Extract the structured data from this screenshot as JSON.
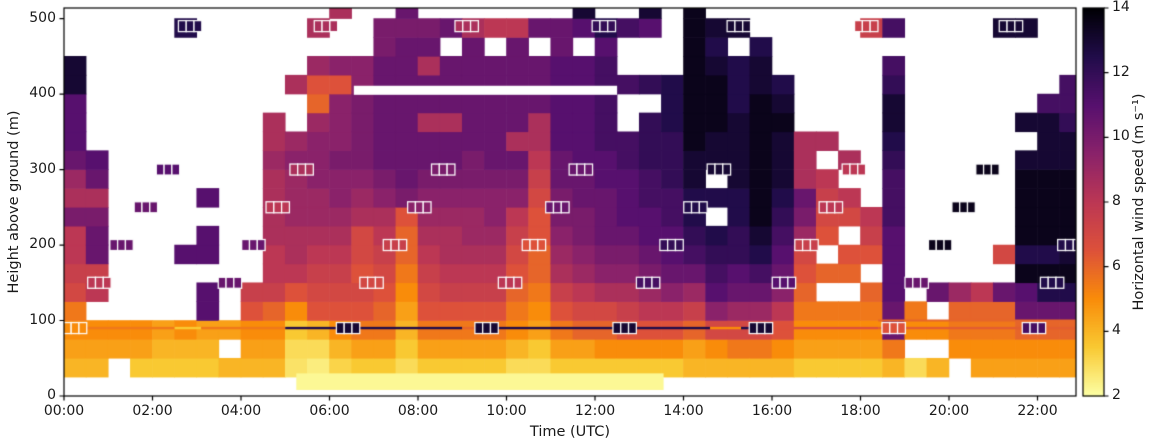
{
  "axes": {
    "x_label": "Time (UTC)",
    "y_label": "Height above ground (m)",
    "x_ticks": [
      "00:00",
      "02:00",
      "04:00",
      "06:00",
      "08:00",
      "10:00",
      "12:00",
      "14:00",
      "16:00",
      "18:00",
      "20:00",
      "22:00"
    ],
    "y_ticks": [
      "0",
      "100",
      "200",
      "300",
      "400",
      "500"
    ],
    "colorbar_label": "Horizontal wind speed (m s⁻¹)",
    "colorbar_ticks": [
      "2",
      "4",
      "6",
      "8",
      "10",
      "12",
      "14"
    ]
  },
  "chart_data": {
    "type": "heatmap",
    "title": "",
    "xlabel": "Time (UTC)",
    "ylabel": "Height above ground (m)",
    "colorbar_label": "Horizontal wind speed (m s⁻¹)",
    "time_range_hours": [
      0,
      22.87
    ],
    "height_range_m": [
      0,
      514
    ],
    "value_range": [
      2,
      14
    ],
    "time_step_hours": 0.5,
    "height_origin_m": 25,
    "height_step_m": 25,
    "colormap": {
      "name": "inferno_reversed",
      "stops": [
        [
          2,
          "#fcffa4"
        ],
        [
          3.5,
          "#f9c932"
        ],
        [
          5,
          "#f98c0a"
        ],
        [
          6.5,
          "#dd513a"
        ],
        [
          8,
          "#bc3754"
        ],
        [
          9.5,
          "#8a226a"
        ],
        [
          11,
          "#57106e"
        ],
        [
          12.5,
          "#210c4a"
        ],
        [
          14,
          "#000004"
        ]
      ]
    },
    "columns": [
      [
        4,
        4.5,
        5,
        5.5,
        7,
        7.5,
        8,
        8,
        10,
        8.5,
        9,
        10.5,
        11,
        11,
        11,
        13,
        13,
        null,
        null,
        null
      ],
      [
        4,
        4.5,
        5,
        null,
        8,
        7.5,
        10.5,
        10.5,
        10,
        8.5,
        10.5,
        11,
        null,
        null,
        null,
        null,
        null,
        null,
        null,
        null
      ],
      [
        null,
        4.5,
        5,
        null,
        null,
        null,
        null,
        null,
        null,
        null,
        null,
        null,
        null,
        null,
        null,
        null,
        null,
        null,
        null,
        null
      ],
      [
        3.5,
        4.5,
        5,
        null,
        null,
        null,
        null,
        null,
        null,
        null,
        null,
        null,
        null,
        null,
        null,
        null,
        null,
        null,
        null,
        null
      ],
      [
        3.5,
        4,
        4.5,
        null,
        null,
        null,
        null,
        null,
        null,
        null,
        null,
        null,
        null,
        null,
        null,
        null,
        null,
        null,
        null,
        null
      ],
      [
        3.5,
        4,
        5,
        null,
        null,
        null,
        11,
        null,
        null,
        null,
        null,
        null,
        null,
        null,
        null,
        null,
        null,
        null,
        12.5,
        null
      ],
      [
        3.5,
        4,
        4.5,
        11,
        11,
        null,
        11,
        11,
        null,
        11,
        null,
        null,
        null,
        null,
        null,
        null,
        null,
        null,
        null,
        null
      ],
      [
        4,
        null,
        4.5,
        null,
        null,
        null,
        null,
        null,
        null,
        null,
        null,
        null,
        null,
        null,
        null,
        null,
        null,
        null,
        null,
        null
      ],
      [
        4,
        4.5,
        5,
        6.5,
        7.5,
        null,
        null,
        null,
        null,
        null,
        null,
        null,
        null,
        null,
        null,
        null,
        null,
        null,
        null,
        null
      ],
      [
        4,
        4.5,
        5,
        6,
        7.5,
        8,
        8,
        8.5,
        8.5,
        8.5,
        8.5,
        9,
        8.5,
        8.5,
        null,
        null,
        null,
        null,
        null,
        null
      ],
      [
        2.8,
        3,
        3.5,
        5,
        6.5,
        8,
        8.5,
        8.5,
        9,
        9,
        9,
        9.5,
        9,
        null,
        null,
        8.5,
        null,
        null,
        null,
        null
      ],
      [
        2.5,
        3,
        4,
        6.5,
        7,
        7.5,
        8,
        8.5,
        9,
        9,
        9.5,
        9.5,
        9.5,
        9,
        6,
        6.5,
        9,
        null,
        8.5,
        null
      ],
      [
        3.2,
        4,
        5,
        6.5,
        7,
        7.5,
        8,
        8.5,
        9,
        9.5,
        9.5,
        10,
        9.5,
        9.5,
        9.5,
        6.5,
        9.5,
        null,
        null,
        8.5
      ],
      [
        3.5,
        4.5,
        5.5,
        6.5,
        7,
        6.5,
        7,
        7,
        8.5,
        9,
        9.5,
        10,
        10,
        10,
        10,
        9.5,
        9.5,
        null,
        null,
        null
      ],
      [
        3.5,
        4.5,
        5.5,
        6,
        6.5,
        7,
        7.5,
        8,
        8.5,
        9.5,
        10,
        10.5,
        10.5,
        10.5,
        10.5,
        10.5,
        10.5,
        10,
        10,
        null
      ],
      [
        3,
        3.5,
        4,
        4.5,
        5,
        5.5,
        6,
        6,
        6.5,
        10,
        10.5,
        10.5,
        10.5,
        10.5,
        10.5,
        10.5,
        10.5,
        10.5,
        10,
        10.5
      ],
      [
        3.5,
        4.5,
        5.5,
        6.5,
        7,
        7.5,
        8,
        8.5,
        9,
        9.5,
        10,
        10.5,
        10.5,
        8.5,
        10.5,
        10.5,
        8.5,
        10.5,
        10,
        null
      ],
      [
        3.5,
        4.5,
        5.5,
        6.5,
        7.5,
        8,
        8.5,
        8.5,
        9,
        9.5,
        10,
        10.5,
        10.5,
        8.5,
        10.5,
        10.5,
        10.5,
        null,
        10.5,
        null
      ],
      [
        3.5,
        4.5,
        5.5,
        6.5,
        7.5,
        8,
        8.5,
        9,
        9,
        9.5,
        10,
        10,
        10.5,
        10.5,
        10.5,
        10.5,
        10.5,
        10.5,
        8.5,
        null
      ],
      [
        3.5,
        4.5,
        5.5,
        6.5,
        7.5,
        8,
        8.5,
        9,
        9.5,
        9.5,
        10,
        10.5,
        10.5,
        10.5,
        10.5,
        10.5,
        10.5,
        null,
        8,
        null
      ],
      [
        3,
        4,
        5,
        5.5,
        6,
        6.5,
        7,
        7.5,
        8,
        9.5,
        10,
        10.5,
        8.5,
        10.5,
        10.5,
        10.5,
        10.5,
        10.5,
        8,
        null
      ],
      [
        3,
        3.5,
        4.5,
        5,
        5.5,
        6,
        6,
        6.5,
        6.5,
        7,
        7.5,
        8,
        8.5,
        8.5,
        10.5,
        10.5,
        10.5,
        null,
        10.5,
        null
      ],
      [
        3.5,
        4.5,
        5.5,
        6.5,
        7.5,
        8.5,
        9,
        9.5,
        10,
        10,
        10.5,
        10.5,
        11,
        11,
        11,
        11,
        11,
        10.5,
        10.5,
        null
      ],
      [
        3.5,
        4.5,
        6,
        7,
        8,
        9,
        9.5,
        10,
        10,
        10.5,
        10.5,
        11,
        11,
        11,
        11,
        11,
        11,
        null,
        11,
        13
      ],
      [
        3.5,
        5,
        6,
        7,
        8.5,
        9.5,
        10,
        10.5,
        10.5,
        10.5,
        11,
        11,
        11.5,
        11.5,
        11.5,
        11.5,
        11.5,
        11,
        12.5,
        null
      ],
      [
        3.5,
        5,
        6.5,
        7.5,
        8.5,
        9.5,
        10,
        10.5,
        11,
        11,
        11,
        11.5,
        11.5,
        null,
        null,
        11.5,
        null,
        null,
        11.5,
        null
      ],
      [
        3.5,
        5,
        6.5,
        8,
        9,
        10,
        10.5,
        11,
        11,
        11.5,
        11.5,
        12,
        12,
        12,
        null,
        12,
        null,
        null,
        11,
        13
      ],
      [
        3.5,
        5,
        6.5,
        8,
        9.5,
        10.5,
        11,
        11,
        11.5,
        11.5,
        12,
        12,
        12,
        12.5,
        12.5,
        12.5,
        null,
        null,
        null,
        null
      ],
      [
        4,
        4.5,
        6,
        7.5,
        9,
        10.5,
        11.5,
        12,
        12.5,
        12.5,
        13,
        13,
        13.5,
        13.5,
        13.5,
        13.5,
        13.5,
        13.5,
        13.5,
        13.5
      ],
      [
        4,
        5,
        7,
        9.5,
        11,
        11.5,
        12,
        12.5,
        null,
        12.5,
        null,
        13,
        13,
        13.5,
        13.5,
        13.5,
        13,
        12.5,
        13,
        null
      ],
      [
        4,
        5.5,
        7,
        9,
        10.5,
        11,
        12,
        12,
        12.5,
        12.5,
        13,
        13,
        13,
        13,
        12.5,
        12.5,
        12.5,
        null,
        13,
        null
      ],
      [
        4,
        5.5,
        7,
        9,
        10.5,
        11.5,
        12.5,
        13,
        13.5,
        13.5,
        13.5,
        13.5,
        13.5,
        13.5,
        13.5,
        13,
        13,
        12.5,
        null,
        null
      ],
      [
        4,
        5,
        6.5,
        8,
        9.5,
        10.5,
        11,
        11.5,
        12,
        12.5,
        13,
        13,
        13,
        13.5,
        13,
        12.5,
        null,
        null,
        null,
        null
      ],
      [
        3.5,
        4.5,
        5,
        5.5,
        6,
        6.5,
        7,
        9,
        10,
        10.5,
        8.5,
        8.5,
        8.5,
        null,
        null,
        null,
        null,
        null,
        null,
        null
      ],
      [
        3.5,
        4.5,
        5,
        5.5,
        null,
        6,
        null,
        6.5,
        7,
        7.5,
        8,
        null,
        8.5,
        null,
        null,
        null,
        null,
        null,
        null,
        null
      ],
      [
        3.5,
        4.5,
        5,
        5.5,
        null,
        6,
        6.5,
        null,
        7,
        8,
        null,
        8.5,
        null,
        null,
        null,
        null,
        null,
        null,
        null,
        null
      ],
      [
        3.5,
        4.5,
        5,
        5.5,
        6,
        null,
        6.5,
        7.5,
        8,
        null,
        null,
        null,
        null,
        null,
        null,
        null,
        null,
        null,
        7.5,
        null
      ],
      [
        4,
        5.5,
        10.5,
        10.5,
        11,
        11,
        11,
        11,
        11.5,
        11.5,
        11.5,
        12,
        12.5,
        13,
        13,
        12,
        11.5,
        null,
        11.5,
        null
      ],
      [
        3,
        null,
        5,
        5.5,
        null,
        null,
        null,
        null,
        null,
        null,
        null,
        null,
        null,
        null,
        null,
        null,
        null,
        null,
        null,
        null
      ],
      [
        4,
        null,
        5,
        null,
        10.5,
        null,
        null,
        null,
        null,
        null,
        null,
        null,
        null,
        null,
        null,
        null,
        null,
        null,
        null,
        null
      ],
      [
        null,
        5,
        5.5,
        6,
        9,
        null,
        null,
        null,
        null,
        null,
        null,
        null,
        null,
        null,
        null,
        null,
        null,
        null,
        null,
        null
      ],
      [
        4.5,
        5,
        5.5,
        6,
        8,
        null,
        null,
        null,
        null,
        null,
        null,
        null,
        null,
        null,
        null,
        null,
        null,
        null,
        null,
        null
      ],
      [
        4.5,
        5,
        5.5,
        6,
        10.5,
        null,
        7,
        null,
        null,
        null,
        null,
        null,
        null,
        null,
        null,
        null,
        null,
        null,
        13,
        null
      ],
      [
        4.5,
        5,
        6,
        10.5,
        11,
        13.5,
        12.5,
        13.5,
        13.5,
        13.5,
        13.5,
        13,
        null,
        13,
        null,
        null,
        null,
        null,
        13,
        null
      ],
      [
        4.5,
        5,
        6,
        10.5,
        12.5,
        13.5,
        12.5,
        13.5,
        13.5,
        13.5,
        13.5,
        13,
        13,
        13,
        11.5,
        null,
        null,
        null,
        null,
        null
      ],
      [
        4.5,
        5,
        6,
        10.5,
        12.5,
        13.5,
        13,
        13.5,
        13.5,
        13.5,
        13.5,
        13,
        13,
        12,
        11.5,
        11.5,
        null,
        null,
        null,
        null
      ]
    ],
    "surface_band": {
      "h0": 5.25,
      "h1": 13.55,
      "z0": 8,
      "z1": 30,
      "value": 2.2
    },
    "wire_line_90m": {
      "height_m": 90,
      "segments": [
        [
          0,
          2.5,
          5.5
        ],
        [
          2.5,
          3.1,
          3.5
        ],
        [
          3.1,
          5,
          5.5
        ],
        [
          5,
          9,
          12.5
        ],
        [
          9,
          9.7,
          6
        ],
        [
          9.7,
          14.6,
          12.5
        ],
        [
          14.6,
          15.3,
          5
        ],
        [
          15.3,
          16,
          12.5
        ],
        [
          16,
          18.4,
          6.5
        ],
        [
          18.4,
          22.87,
          6.2
        ]
      ]
    },
    "wire_line_100m": {
      "height_m": 100,
      "segments": [
        [
          18.4,
          22.87,
          6
        ]
      ]
    },
    "missing_data_stripe_400m": {
      "h0": 6.55,
      "h1": 12.5,
      "z0": 399,
      "z1": 411
    },
    "profile_markers": [
      [
        0.25,
        90,
        5
      ],
      [
        0.8,
        150,
        8
      ],
      [
        1.3,
        200,
        10.5
      ],
      [
        1.85,
        250,
        10.5
      ],
      [
        2.35,
        300,
        11
      ],
      [
        2.85,
        490,
        12.5
      ],
      [
        3.75,
        150,
        10.5
      ],
      [
        4.28,
        200,
        10.5
      ],
      [
        4.83,
        250,
        8
      ],
      [
        5.37,
        300,
        8.5
      ],
      [
        5.92,
        490,
        8.5
      ],
      [
        6.42,
        90,
        13
      ],
      [
        6.95,
        150,
        7
      ],
      [
        7.48,
        200,
        7.5
      ],
      [
        8.03,
        250,
        9.5
      ],
      [
        8.57,
        300,
        10
      ],
      [
        9.1,
        490,
        8.5
      ],
      [
        9.55,
        90,
        13
      ],
      [
        10.08,
        150,
        8
      ],
      [
        10.62,
        200,
        6.5
      ],
      [
        11.15,
        250,
        10.5
      ],
      [
        11.68,
        300,
        10.5
      ],
      [
        12.2,
        490,
        12
      ],
      [
        12.67,
        90,
        13
      ],
      [
        13.2,
        150,
        11.5
      ],
      [
        13.73,
        200,
        12
      ],
      [
        14.27,
        250,
        12.5
      ],
      [
        14.8,
        300,
        13
      ],
      [
        15.25,
        490,
        13
      ],
      [
        15.75,
        90,
        13
      ],
      [
        16.27,
        150,
        11
      ],
      [
        16.78,
        200,
        7.5
      ],
      [
        17.33,
        250,
        8
      ],
      [
        17.85,
        300,
        8
      ],
      [
        18.13,
        490,
        7.5
      ],
      [
        18.75,
        90,
        6.5
      ],
      [
        19.27,
        150,
        10.5
      ],
      [
        19.8,
        200,
        13.5
      ],
      [
        20.33,
        250,
        13.5
      ],
      [
        20.87,
        300,
        13.5
      ],
      [
        21.4,
        490,
        13
      ],
      [
        21.92,
        90,
        11.5
      ],
      [
        22.33,
        150,
        12.5
      ],
      [
        22.72,
        200,
        12.5
      ]
    ]
  }
}
